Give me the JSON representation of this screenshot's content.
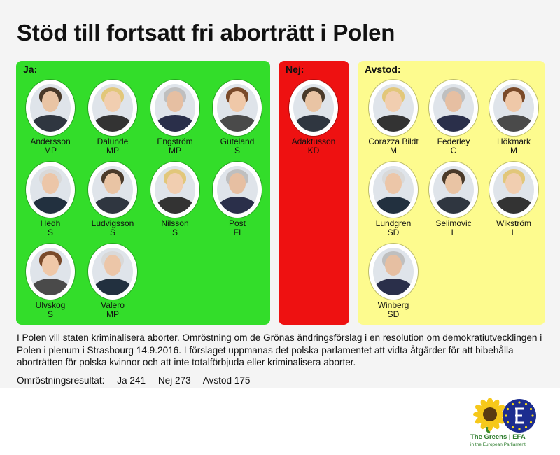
{
  "title": "Stöd till fortsatt fri aborträtt i Polen",
  "panels": {
    "ja": {
      "label": "Ja:",
      "color": "#33dd2a",
      "members": [
        {
          "name": "Andersson",
          "party": "MP"
        },
        {
          "name": "Dalunde",
          "party": "MP"
        },
        {
          "name": "Engström",
          "party": "MP"
        },
        {
          "name": "Guteland",
          "party": "S"
        },
        {
          "name": "Hedh",
          "party": "S"
        },
        {
          "name": "Ludvigsson",
          "party": "S"
        },
        {
          "name": "Nilsson",
          "party": "S"
        },
        {
          "name": "Post",
          "party": "FI"
        },
        {
          "name": "Ulvskog",
          "party": "S"
        },
        {
          "name": "Valero",
          "party": "MP"
        }
      ]
    },
    "nej": {
      "label": "Nej:",
      "color": "#ee1111",
      "members": [
        {
          "name": "Adaktusson",
          "party": "KD"
        }
      ]
    },
    "avstod": {
      "label": "Avstod:",
      "color": "#fdfb8e",
      "members": [
        {
          "name": "Corazza Bildt",
          "party": "M"
        },
        {
          "name": "Federley",
          "party": "C"
        },
        {
          "name": "Hökmark",
          "party": "M"
        },
        {
          "name": "Lundgren",
          "party": "SD"
        },
        {
          "name": "Selimovic",
          "party": "L"
        },
        {
          "name": "Wikström",
          "party": "L"
        },
        {
          "name": "Winberg",
          "party": "SD"
        }
      ]
    }
  },
  "description": "I Polen vill staten kriminalisera aborter. Omröstning om de Grönas ändringsförslag i en resolution om demokratiutvecklingen i Polen i plenum i Strasbourg 14.9.2016. I förslaget uppmanas det polska parlamentet att vidta åtgärder för att bibehålla aborträtten för polska kvinnor och att inte totalförbjuda eller kriminalisera aborter.",
  "result": {
    "label": "Omröstningsresultat:",
    "ja": "Ja 241",
    "nej": "Nej 273",
    "avstod": "Avstod 175"
  },
  "logo": {
    "text": "The Greens | EFA",
    "subtext": "in the European Parliament",
    "icons": [
      "sunflower-icon",
      "efa-star-circle-icon"
    ]
  }
}
